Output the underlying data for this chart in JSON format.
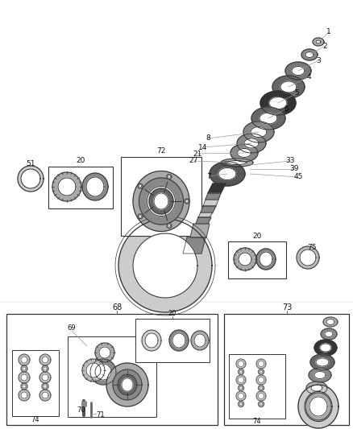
{
  "bg_color": "#ffffff",
  "lc": "#333333",
  "gray1": "#888888",
  "gray2": "#aaaaaa",
  "gray3": "#555555",
  "gray4": "#cccccc",
  "black": "#111111",
  "figw": 4.38,
  "figh": 5.33,
  "dpi": 100
}
